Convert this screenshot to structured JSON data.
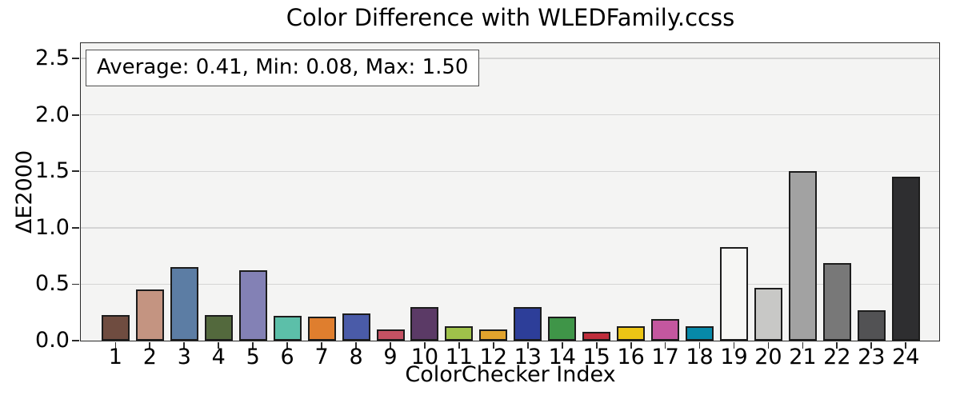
{
  "title": "Color Difference with WLEDFamily.ccss",
  "annotation": "Average: 0.41, Min: 0.08, Max: 1.50",
  "stats": {
    "average": "0.41",
    "min": "0.08",
    "max": "1.50"
  },
  "chart_data": {
    "type": "bar",
    "title": "Color Difference with WLEDFamily.ccss",
    "xlabel": "ColorChecker Index",
    "ylabel": "ΔE2000",
    "categories": [
      "1",
      "2",
      "3",
      "4",
      "5",
      "6",
      "7",
      "8",
      "9",
      "10",
      "11",
      "12",
      "13",
      "14",
      "15",
      "16",
      "17",
      "18",
      "19",
      "20",
      "21",
      "22",
      "23",
      "24"
    ],
    "values": [
      0.23,
      0.45,
      0.65,
      0.23,
      0.62,
      0.22,
      0.21,
      0.24,
      0.1,
      0.3,
      0.13,
      0.1,
      0.3,
      0.21,
      0.08,
      0.13,
      0.19,
      0.13,
      0.83,
      0.47,
      1.5,
      0.69,
      0.27,
      1.45
    ],
    "bar_colors": [
      "#6f4c40",
      "#c49481",
      "#5c7da4",
      "#53693d",
      "#8381b5",
      "#5cbfa9",
      "#df7e2e",
      "#4a5ba8",
      "#c55263",
      "#5b3a66",
      "#9fc24a",
      "#e2a32d",
      "#2d3e99",
      "#3f9548",
      "#bf2e3c",
      "#ecc515",
      "#c4579f",
      "#0789a9",
      "#f6f6f4",
      "#c8c8c6",
      "#a2a2a2",
      "#787878",
      "#525254",
      "#2e2e30"
    ],
    "ylim": [
      0,
      2.635
    ],
    "yticks": [
      0.0,
      0.5,
      1.0,
      1.5,
      2.0,
      2.5
    ],
    "grid": true,
    "legend": null,
    "annotation": "Average: 0.41, Min: 0.08, Max: 1.50"
  },
  "colors": {
    "plot_bg": "#f4f4f3",
    "grid": "#d4d4d4",
    "spine": "#2a2a2a",
    "bar_edge": "#1c1c1c",
    "annotation_bg": "#ffffff",
    "annotation_border": "#4f4f4f",
    "text": "#000000"
  }
}
